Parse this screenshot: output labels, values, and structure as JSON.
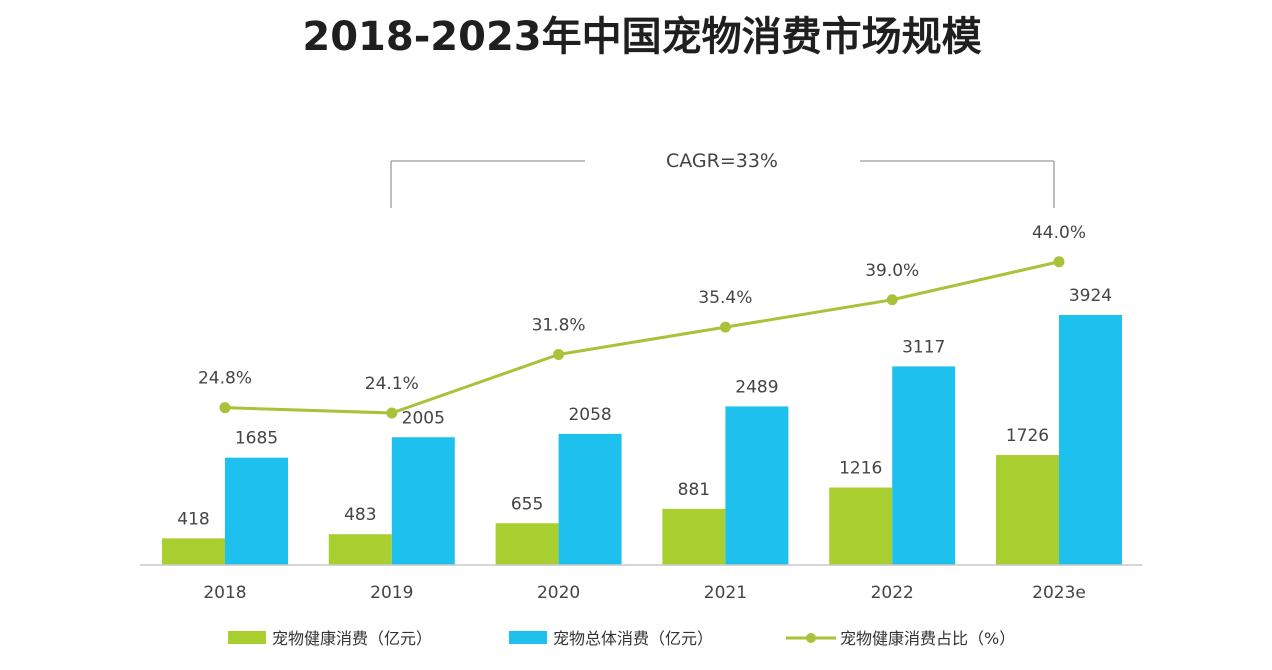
{
  "chart_data": {
    "type": "bar",
    "title": "2018-2023年中国宠物消费市场规模",
    "categories": [
      "2018",
      "2019",
      "2020",
      "2021",
      "2022",
      "2023e"
    ],
    "series": [
      {
        "name": "宠物健康消费（亿元）",
        "type": "bar",
        "color": "#a8cf2f",
        "values": [
          418,
          483,
          655,
          881,
          1216,
          1726
        ]
      },
      {
        "name": "宠物总体消费（亿元）",
        "type": "bar",
        "color": "#1ec1ee",
        "values": [
          1685,
          2005,
          2058,
          2489,
          3117,
          3924
        ]
      },
      {
        "name": "宠物健康消费占比（%）",
        "type": "line",
        "color": "#a8c23a",
        "values": [
          24.8,
          24.1,
          31.8,
          35.4,
          39.0,
          44.0
        ],
        "labels": [
          "24.8%",
          "24.1%",
          "31.8%",
          "35.4%",
          "39.0%",
          "44.0%"
        ]
      }
    ],
    "annotation": {
      "text": "CAGR=33%",
      "from_category": "2019",
      "to_category": "2023e"
    },
    "legend_position": "bottom",
    "grid": false
  }
}
